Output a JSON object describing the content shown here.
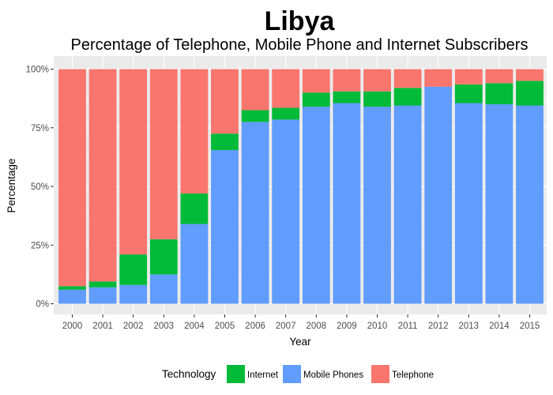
{
  "chart_data": {
    "type": "bar",
    "stacked": true,
    "normalized": true,
    "title": "Libya",
    "subtitle": "Percentage of Telephone, Mobile Phone and Internet Subscribers",
    "xlabel": "Year",
    "ylabel": "Percentage",
    "ylim": [
      0,
      100
    ],
    "y_ticks": [
      "0%",
      "25%",
      "50%",
      "75%",
      "100%"
    ],
    "y_tick_values": [
      0,
      25,
      50,
      75,
      100
    ],
    "grid": true,
    "legend_title": "Technology",
    "legend_position": "bottom",
    "categories": [
      "2000",
      "2001",
      "2002",
      "2003",
      "2004",
      "2005",
      "2006",
      "2007",
      "2008",
      "2009",
      "2010",
      "2011",
      "2012",
      "2013",
      "2014",
      "2015"
    ],
    "stack_order_bottom_to_top": [
      "Mobile Phones",
      "Internet",
      "Telephone"
    ],
    "series": [
      {
        "name": "Internet",
        "color": "#00ba38",
        "values": [
          1.5,
          2.5,
          13,
          15,
          13,
          7,
          5,
          5,
          6,
          5,
          6.5,
          7.5,
          0,
          8,
          9,
          10.5
        ]
      },
      {
        "name": "Mobile Phones",
        "color": "#619cff",
        "values": [
          6,
          7,
          8,
          12.5,
          34,
          65.5,
          77.5,
          78.5,
          84,
          85.5,
          84,
          84.5,
          92.5,
          85.5,
          85,
          84.5
        ]
      },
      {
        "name": "Telephone",
        "color": "#f8766d",
        "values": [
          92.5,
          90.5,
          79,
          72.5,
          53,
          27.5,
          17.5,
          16.5,
          10,
          9.5,
          9.5,
          8,
          7.5,
          6.5,
          6,
          5
        ]
      }
    ],
    "legend_order": [
      "Internet",
      "Mobile Phones",
      "Telephone"
    ],
    "panel_background": "#ebebeb",
    "grid_color": "#ffffff"
  }
}
